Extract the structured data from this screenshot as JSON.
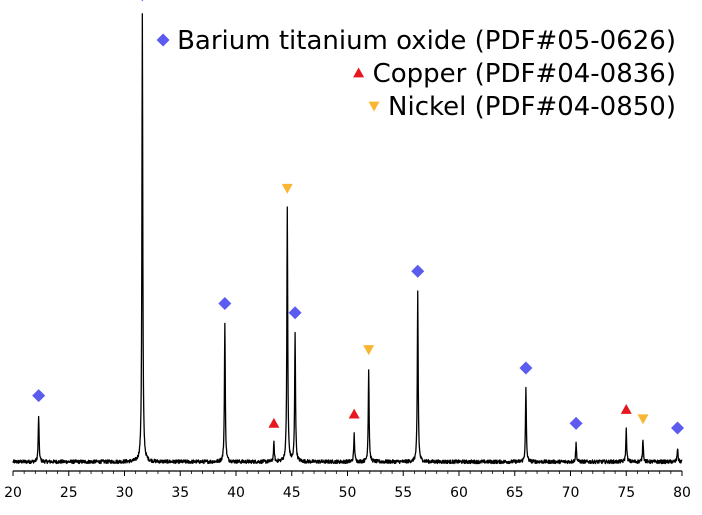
{
  "chart_data": {
    "type": "line",
    "title": "",
    "xlabel": "",
    "ylabel": "",
    "xlim": [
      20,
      80
    ],
    "ylim": [
      0,
      1
    ],
    "x_ticks": [
      20,
      25,
      30,
      35,
      40,
      45,
      50,
      55,
      60,
      65,
      70,
      75,
      80
    ],
    "grid": false,
    "legend_position": "top-right",
    "series": [
      {
        "peaks": [
          {
            "x": 22.3,
            "y": 0.1
          },
          {
            "x": 31.6,
            "y": 0.97
          },
          {
            "x": 39.0,
            "y": 0.3
          },
          {
            "x": 43.4,
            "y": 0.04
          },
          {
            "x": 44.6,
            "y": 0.55
          },
          {
            "x": 45.3,
            "y": 0.28
          },
          {
            "x": 50.6,
            "y": 0.06
          },
          {
            "x": 51.9,
            "y": 0.2
          },
          {
            "x": 56.3,
            "y": 0.37
          },
          {
            "x": 66.0,
            "y": 0.16
          },
          {
            "x": 70.5,
            "y": 0.04
          },
          {
            "x": 75.0,
            "y": 0.07
          },
          {
            "x": 76.5,
            "y": 0.05
          },
          {
            "x": 79.6,
            "y": 0.03
          }
        ],
        "baseline": 0.02,
        "color": "#000000"
      }
    ],
    "phases": [
      {
        "name": "Barium titanium oxide (PDF#05-0626)",
        "marker": "diamond",
        "color": "#5b5bef",
        "positions": [
          22.3,
          31.6,
          39.0,
          45.3,
          56.3,
          66.0,
          70.5,
          79.6
        ]
      },
      {
        "name": "Copper (PDF#04-0836)",
        "marker": "triangle-up",
        "color": "#e8161f",
        "positions": [
          43.4,
          50.6,
          75.0
        ]
      },
      {
        "name": "Nickel (PDF#04-0850)",
        "marker": "triangle-down",
        "color": "#f8b733",
        "positions": [
          44.6,
          51.9,
          76.5
        ]
      }
    ]
  }
}
